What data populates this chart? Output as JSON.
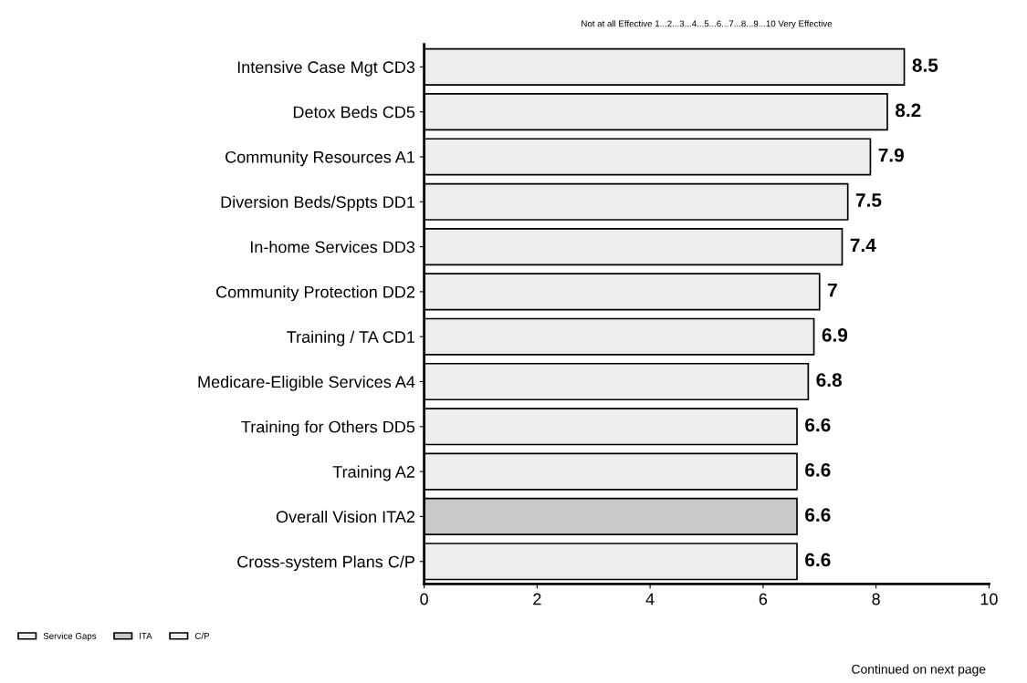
{
  "chart_data": {
    "type": "bar",
    "orientation": "horizontal",
    "subtitle": "Not at all Effective 1...2...3...4...5...6...7...8...9...10 Very Effective",
    "categories": [
      "Intensive Case Mgt CD3",
      "Detox Beds CD5",
      "Community Resources A1",
      "Diversion Beds/Sppts DD1",
      "In-home Services DD3",
      "Community Protection DD2",
      "Training / TA CD1",
      "Medicare-Eligible Services A4",
      "Training for Others DD5",
      "Training A2",
      "Overall Vision ITA2",
      "Cross-system Plans C/P"
    ],
    "series": [
      {
        "name": "Service Gaps",
        "color": "#ededed",
        "values": [
          8.5,
          8.2,
          7.9,
          7.5,
          7.4,
          7,
          6.9,
          6.8,
          6.6,
          6.6,
          null,
          null
        ]
      },
      {
        "name": "ITA",
        "color": "#c9c9c9",
        "values": [
          null,
          null,
          null,
          null,
          null,
          null,
          null,
          null,
          null,
          null,
          6.6,
          null
        ]
      },
      {
        "name": "C/P",
        "color": "#ededed",
        "values": [
          null,
          null,
          null,
          null,
          null,
          null,
          null,
          null,
          null,
          null,
          null,
          6.6
        ]
      }
    ],
    "xlim": [
      0,
      10
    ],
    "xticks": [
      0,
      2,
      4,
      6,
      8,
      10
    ],
    "grid": false,
    "legend": "bottom left",
    "data_labels": true,
    "annotations": [
      "Continued on next page"
    ]
  }
}
